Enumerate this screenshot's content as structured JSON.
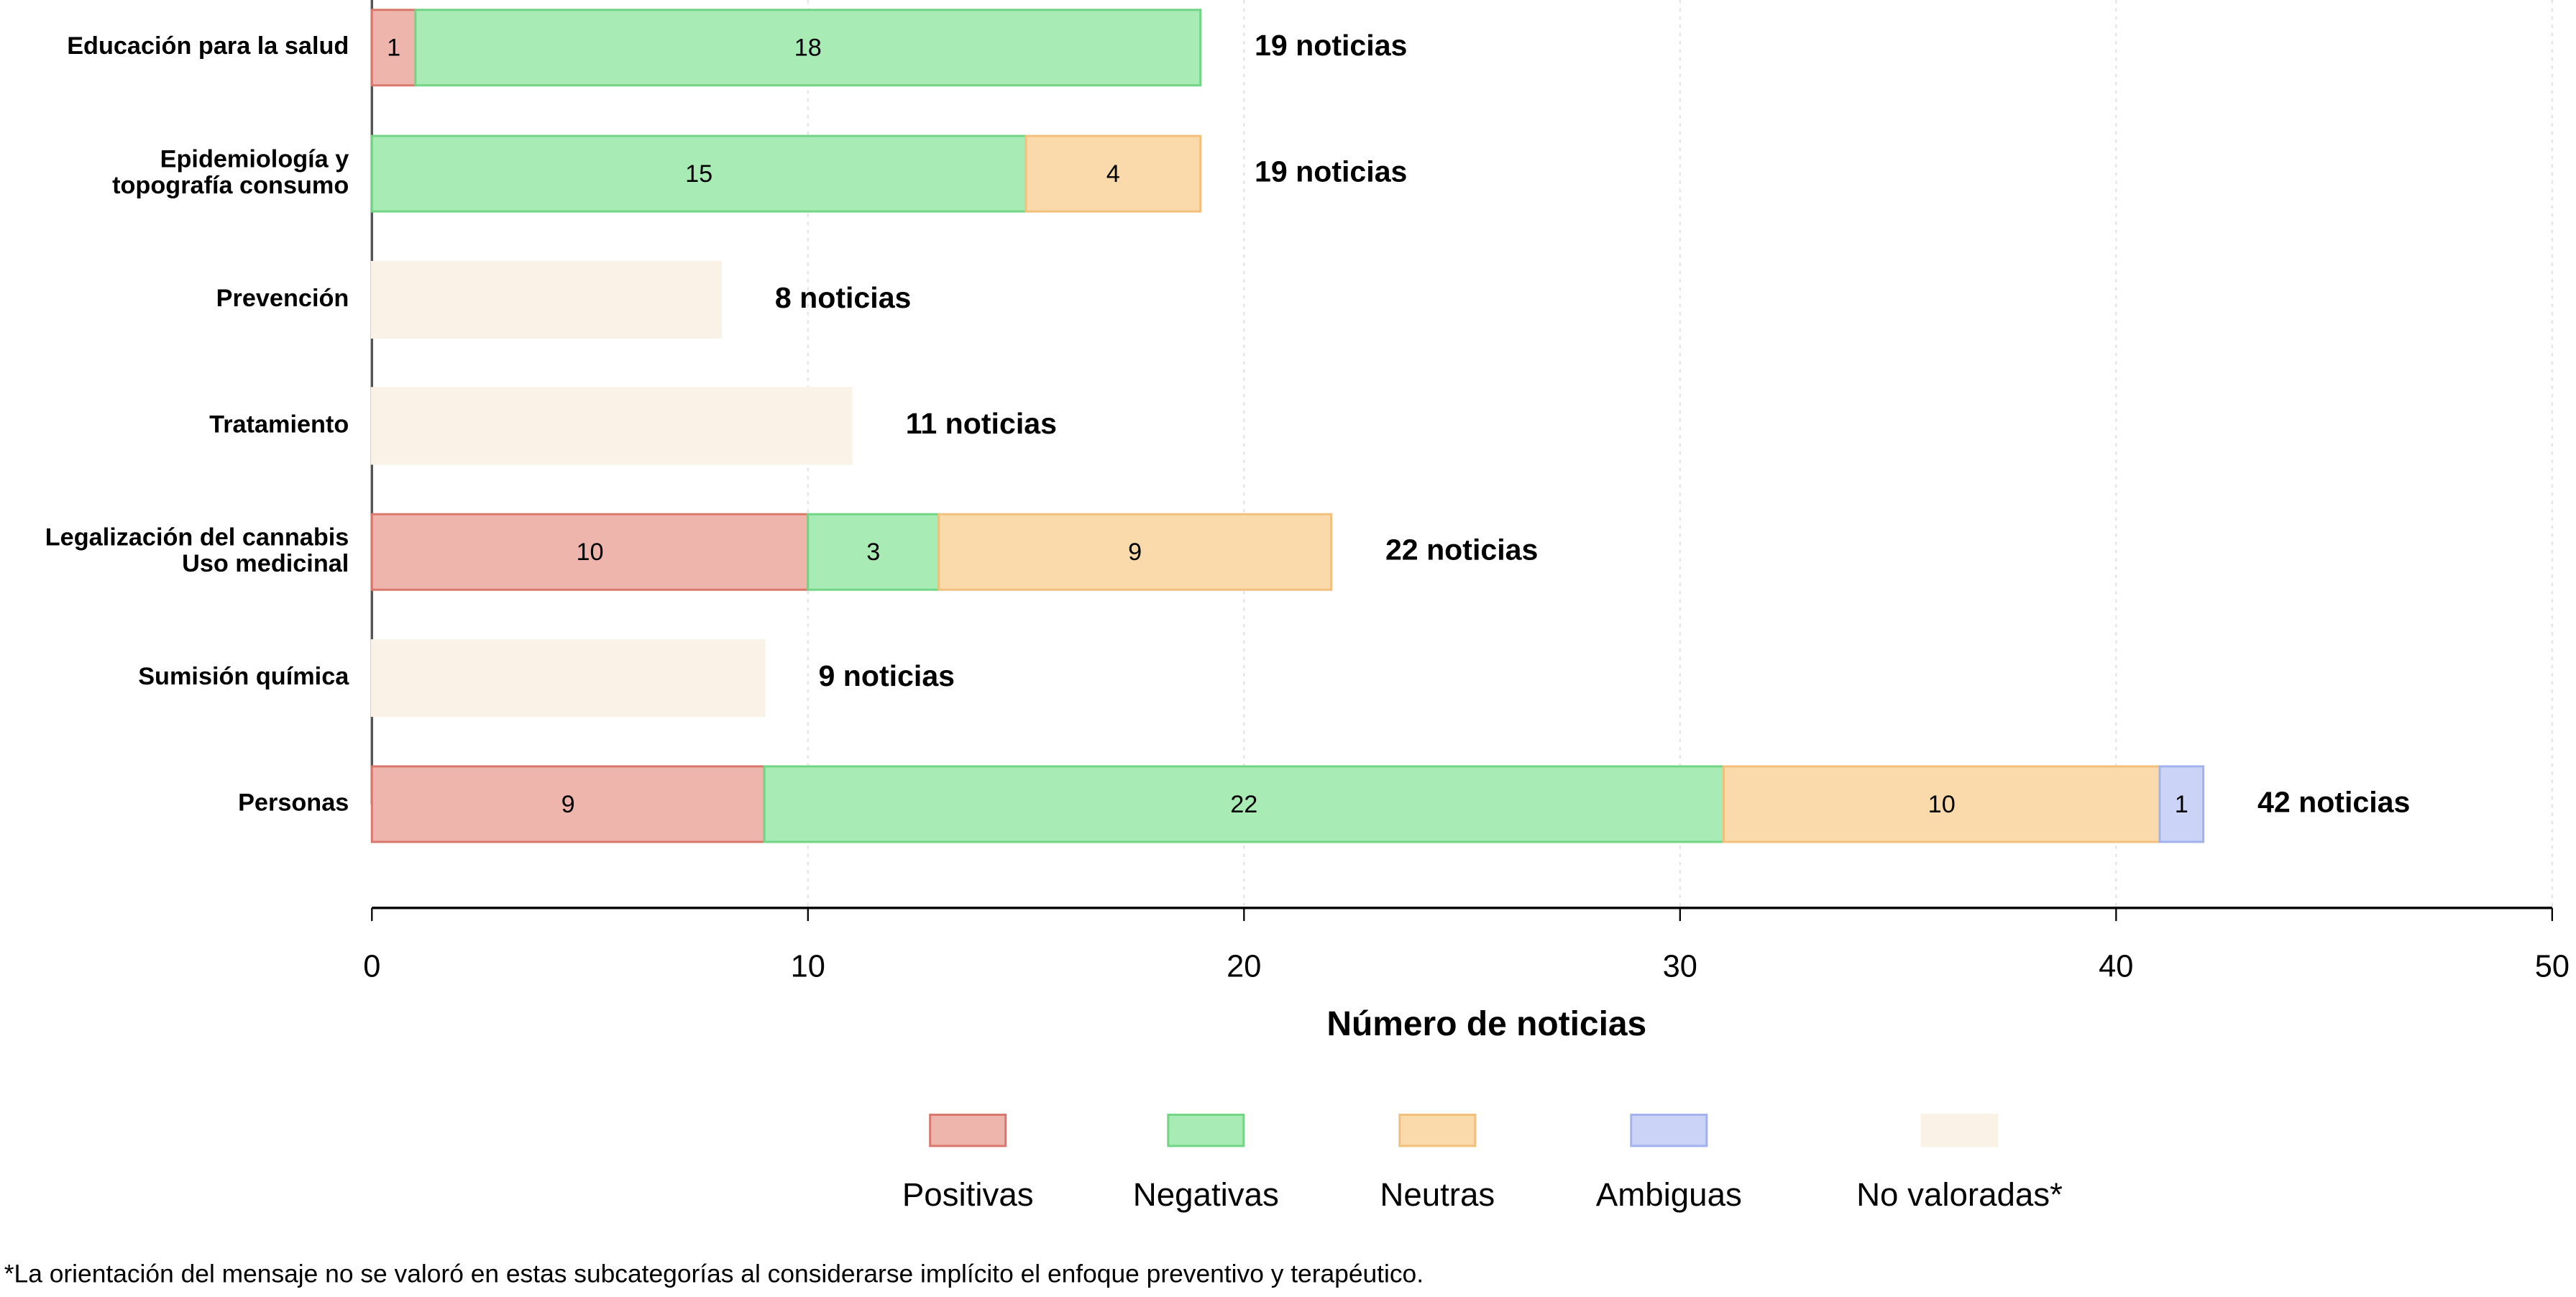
{
  "chart_data": {
    "type": "stacked-barh",
    "categories": [
      [
        "Educación para la salud"
      ],
      [
        "Epidemiología y",
        "topografía consumo"
      ],
      [
        "Prevención"
      ],
      [
        "Tratamiento"
      ],
      [
        "Legalización del cannabis",
        "Uso medicinal"
      ],
      [
        "Sumisión química"
      ],
      [
        "Personas"
      ]
    ],
    "series": [
      {
        "name": "Positivas",
        "color": "#edb5ab",
        "edge": "#d9776d",
        "show_labels": true,
        "values": [
          1,
          null,
          null,
          null,
          10,
          null,
          9
        ]
      },
      {
        "name": "Negativas",
        "color": "#a8ebb4",
        "edge": "#72d585",
        "show_labels": true,
        "values": [
          18,
          15,
          null,
          null,
          3,
          null,
          22
        ]
      },
      {
        "name": "Neutras",
        "color": "#fad9ab",
        "edge": "#f2c07c",
        "show_labels": true,
        "values": [
          null,
          4,
          null,
          null,
          9,
          null,
          10
        ]
      },
      {
        "name": "Ambiguas",
        "color": "#cbd4f6",
        "edge": "#a2b2ef",
        "show_labels": true,
        "values": [
          null,
          null,
          null,
          null,
          null,
          null,
          1
        ]
      },
      {
        "name": "No valoradas*",
        "color": "#faf2e6",
        "edge": "#faf2e6",
        "show_labels": false,
        "values": [
          null,
          null,
          8,
          11,
          null,
          9,
          null
        ]
      }
    ],
    "totals": [
      19,
      19,
      8,
      11,
      22,
      9,
      42
    ],
    "total_labels": [
      "19 noticias",
      "19 noticias",
      "8 noticias",
      "11 noticias",
      "22 noticias",
      "9 noticias",
      "42 noticias"
    ],
    "xlim": [
      0,
      50
    ],
    "xticks": [
      0,
      10,
      20,
      30,
      40,
      50
    ],
    "grid": true,
    "xlabel": "Número de noticias",
    "footnote": "*La orientación del mensaje no se valoró en estas subcategorías al considerarse implícito el enfoque preventivo y terapéutico."
  }
}
